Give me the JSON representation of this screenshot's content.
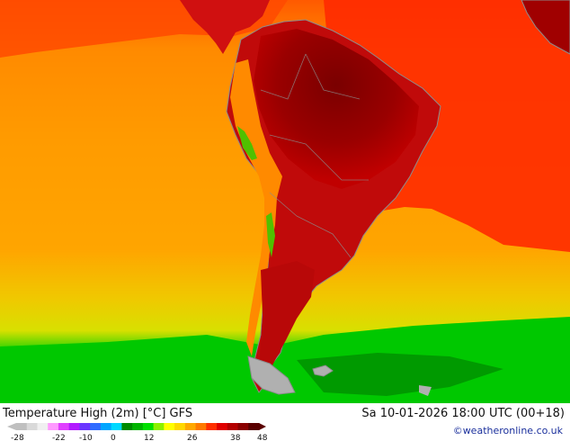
{
  "map": {
    "title": "Temperature High (2m) [°C] GFS",
    "datetime": "Sa 10-01-2026 18:00 UTC (00+18)",
    "credit": "©weatheronline.co.uk"
  },
  "legend": {
    "tick_labels": [
      "-28",
      "-22",
      "-10",
      "0",
      "12",
      "26",
      "38",
      "48"
    ],
    "colors": [
      "#bfbfbf",
      "#d9d9d9",
      "#f0f0f0",
      "#ff99ff",
      "#e040ff",
      "#b21bff",
      "#6b36ff",
      "#2f6bff",
      "#00a6ff",
      "#00d8ff",
      "#008a00",
      "#00b400",
      "#00e000",
      "#8cf000",
      "#ffff00",
      "#ffd800",
      "#ffa800",
      "#ff7a00",
      "#ff3000",
      "#e00000",
      "#b40000",
      "#8a0000",
      "#5a0000"
    ]
  },
  "palette": {
    "ocean_cold": "#00c800",
    "ocean_cool": "#f0c800",
    "ocean_warm": "#ff9b00",
    "ocean_hot": "#ff5000",
    "land_hot": "#d01010",
    "land_very_hot": "#8c0000",
    "coast": "#8c8c8c"
  }
}
